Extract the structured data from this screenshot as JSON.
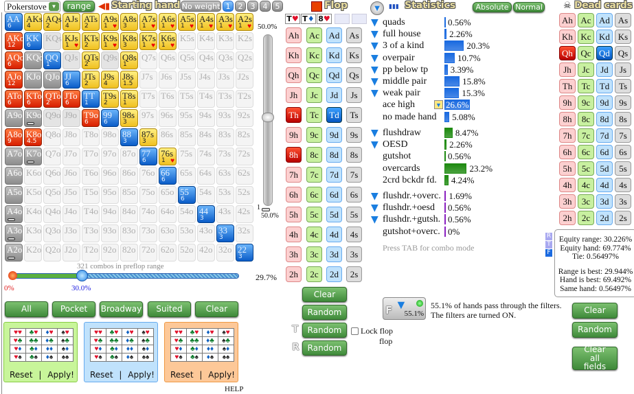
{
  "header": {
    "preset": "Pokerstove",
    "range_btn": "range",
    "title": "Starting hand",
    "no_weight": "No weight",
    "weight_tabs": [
      "1",
      "2",
      "3",
      "4",
      "5"
    ],
    "active_weight": "1"
  },
  "grid": [
    [
      [
        "AA",
        "p",
        "6"
      ],
      [
        "AKs",
        "s",
        "4"
      ],
      [
        "AQs",
        "s",
        "2"
      ],
      [
        "AJs",
        "s",
        "4"
      ],
      [
        "ATs",
        "s",
        "2"
      ],
      [
        "A9s",
        "s",
        "1",
        "h"
      ],
      [
        "A8s",
        "s",
        "3"
      ],
      [
        "A7s",
        "s",
        "1",
        "h"
      ],
      [
        "A6s",
        "s",
        "1",
        "h"
      ],
      [
        "A5s",
        "s",
        "1",
        "h"
      ],
      [
        "A4s",
        "s",
        "1",
        "h"
      ],
      [
        "A3s",
        "s",
        "1",
        "h"
      ],
      [
        "A2s",
        "s",
        "1",
        "h"
      ]
    ],
    [
      [
        "AKo",
        "o",
        "12"
      ],
      [
        "KK",
        "p",
        "6"
      ],
      [
        "KQs",
        "q"
      ],
      [
        "KJs",
        "s",
        "1",
        "h"
      ],
      [
        "KTs",
        "s",
        "2"
      ],
      [
        "K9s",
        "s",
        "1",
        "h"
      ],
      [
        "K8s",
        "s",
        "3"
      ],
      [
        "K7s",
        "s",
        "1",
        "h"
      ],
      [
        "K6s",
        "s",
        "1",
        "h"
      ],
      [
        "K5s",
        "n"
      ],
      [
        "K4s",
        "n"
      ],
      [
        "K3s",
        "n"
      ],
      [
        "K2s",
        "n"
      ]
    ],
    [
      [
        "AQo",
        "o",
        "6"
      ],
      [
        "KQo",
        "g"
      ],
      [
        "QQ",
        "p",
        "1"
      ],
      [
        "QJs",
        "q"
      ],
      [
        "QTs",
        "s",
        "2"
      ],
      [
        "Q9s",
        "q"
      ],
      [
        "Q8s",
        "s",
        "1"
      ],
      [
        "Q7s",
        "n"
      ],
      [
        "Q6s",
        "n"
      ],
      [
        "Q5s",
        "n"
      ],
      [
        "Q4s",
        "n"
      ],
      [
        "Q3s",
        "n"
      ],
      [
        "Q2s",
        "n"
      ]
    ],
    [
      [
        "AJo",
        "o",
        "12"
      ],
      [
        "KJo",
        "g"
      ],
      [
        "QJo",
        "g"
      ],
      [
        "JJ",
        "p",
        "6"
      ],
      [
        "JTs",
        "s",
        "2"
      ],
      [
        "J9s",
        "s",
        "4"
      ],
      [
        "J8s",
        "s",
        "1.5"
      ],
      [
        "J7s",
        "n"
      ],
      [
        "J6s",
        "n"
      ],
      [
        "J5s",
        "n"
      ],
      [
        "J4s",
        "n"
      ],
      [
        "J3s",
        "n"
      ],
      [
        "J2s",
        "n"
      ]
    ],
    [
      [
        "ATo",
        "o",
        "6"
      ],
      [
        "KTo",
        "o",
        "6"
      ],
      [
        "QTo",
        "o",
        "2"
      ],
      [
        "JTo",
        "o",
        "6"
      ],
      [
        "TT",
        "p",
        "1"
      ],
      [
        "T9s",
        "s",
        "2"
      ],
      [
        "T8s",
        "s",
        "1"
      ],
      [
        "T7s",
        "n"
      ],
      [
        "T6s",
        "n"
      ],
      [
        "T5s",
        "n"
      ],
      [
        "T4s",
        "n"
      ],
      [
        "T3s",
        "n"
      ],
      [
        "T2s",
        "n"
      ]
    ],
    [
      [
        "A9o",
        "g"
      ],
      [
        "K9o",
        "g",
        "",
        "b"
      ],
      [
        "Q9o",
        "q"
      ],
      [
        "J9o",
        "q"
      ],
      [
        "T9o",
        "o",
        "6"
      ],
      [
        "99",
        "p",
        "6"
      ],
      [
        "98s",
        "s",
        "3"
      ],
      [
        "97s",
        "n"
      ],
      [
        "96s",
        "n"
      ],
      [
        "95s",
        "n"
      ],
      [
        "94s",
        "n"
      ],
      [
        "93s",
        "n"
      ],
      [
        "92s",
        "n"
      ]
    ],
    [
      [
        "A8o",
        "o",
        "9"
      ],
      [
        "K8o",
        "o",
        "4.5"
      ],
      [
        "Q8o",
        "n"
      ],
      [
        "J8o",
        "n"
      ],
      [
        "T8o",
        "n"
      ],
      [
        "98o",
        "n"
      ],
      [
        "88",
        "p",
        "3"
      ],
      [
        "87s",
        "s",
        "3"
      ],
      [
        "86s",
        "n"
      ],
      [
        "85s",
        "n"
      ],
      [
        "84s",
        "n"
      ],
      [
        "83s",
        "n"
      ],
      [
        "82s",
        "n"
      ]
    ],
    [
      [
        "A7o",
        "g"
      ],
      [
        "K7o",
        "g",
        "",
        "b"
      ],
      [
        "Q7o",
        "n"
      ],
      [
        "J7o",
        "n"
      ],
      [
        "T7o",
        "n"
      ],
      [
        "97o",
        "n"
      ],
      [
        "87o",
        "n"
      ],
      [
        "77",
        "p",
        "6"
      ],
      [
        "76s",
        "s",
        "1",
        "h"
      ],
      [
        "75s",
        "n"
      ],
      [
        "74s",
        "n"
      ],
      [
        "73s",
        "n"
      ],
      [
        "72s",
        "n"
      ]
    ],
    [
      [
        "A6o",
        "g"
      ],
      [
        "K6o",
        "n"
      ],
      [
        "Q6o",
        "n"
      ],
      [
        "J6o",
        "n"
      ],
      [
        "T6o",
        "n"
      ],
      [
        "96o",
        "n"
      ],
      [
        "86o",
        "n"
      ],
      [
        "76o",
        "n"
      ],
      [
        "66",
        "p",
        "6"
      ],
      [
        "65s",
        "n"
      ],
      [
        "64s",
        "n"
      ],
      [
        "63s",
        "n"
      ],
      [
        "62s",
        "n"
      ]
    ],
    [
      [
        "A5o",
        "g"
      ],
      [
        "K5o",
        "n"
      ],
      [
        "Q5o",
        "n"
      ],
      [
        "J5o",
        "n"
      ],
      [
        "T5o",
        "n"
      ],
      [
        "95o",
        "n"
      ],
      [
        "85o",
        "n"
      ],
      [
        "75o",
        "n"
      ],
      [
        "65o",
        "n"
      ],
      [
        "55",
        "p",
        "6"
      ],
      [
        "54s",
        "n"
      ],
      [
        "53s",
        "n"
      ],
      [
        "52s",
        "n"
      ]
    ],
    [
      [
        "A4o",
        "g",
        "",
        "b"
      ],
      [
        "K4o",
        "n"
      ],
      [
        "Q4o",
        "n"
      ],
      [
        "J4o",
        "n"
      ],
      [
        "T4o",
        "n"
      ],
      [
        "94o",
        "n"
      ],
      [
        "84o",
        "n"
      ],
      [
        "74o",
        "n"
      ],
      [
        "64o",
        "n"
      ],
      [
        "54o",
        "n"
      ],
      [
        "44",
        "p",
        "3"
      ],
      [
        "43s",
        "n"
      ],
      [
        "42s",
        "n"
      ]
    ],
    [
      [
        "A3o",
        "g",
        "",
        "b"
      ],
      [
        "K3o",
        "n"
      ],
      [
        "Q3o",
        "n"
      ],
      [
        "J3o",
        "n"
      ],
      [
        "T3o",
        "n"
      ],
      [
        "93o",
        "n"
      ],
      [
        "83o",
        "n"
      ],
      [
        "73o",
        "n"
      ],
      [
        "63o",
        "n"
      ],
      [
        "53o",
        "n"
      ],
      [
        "43o",
        "n"
      ],
      [
        "33",
        "p",
        "3"
      ],
      [
        "32s",
        "n"
      ]
    ],
    [
      [
        "A2o",
        "g",
        "",
        "b"
      ],
      [
        "K2o",
        "n"
      ],
      [
        "Q2o",
        "n"
      ],
      [
        "J2o",
        "n"
      ],
      [
        "T2o",
        "n"
      ],
      [
        "92o",
        "n"
      ],
      [
        "82o",
        "n"
      ],
      [
        "72o",
        "n"
      ],
      [
        "62o",
        "n"
      ],
      [
        "52o",
        "n"
      ],
      [
        "42o",
        "n"
      ],
      [
        "32o",
        "n"
      ],
      [
        "22",
        "p",
        "3"
      ]
    ]
  ],
  "weight_slider": {
    "top_label": "50.0%",
    "bottom_index": "1",
    "bottom_label": "50.0%",
    "value_pct": 50
  },
  "range_slider": {
    "combos_text": "321 combos in preflop range",
    "min_label": "0%",
    "value_label": "30.0%",
    "value": 30.0,
    "right_label": "29.7%"
  },
  "quick_buttons": [
    "All",
    "Pocket",
    "Broadway",
    "Suited",
    "Clear"
  ],
  "suit_boxes": [
    {
      "color": "#c8f59a",
      "border": "#8c4"
    },
    {
      "color": "#c0e2fc",
      "border": "#6ae"
    },
    {
      "color": "#fdc898",
      "border": "#e94"
    }
  ],
  "suit_box_labels": {
    "reset": "Reset",
    "sep": "|",
    "apply": "Apply!"
  },
  "suits": {
    "h": {
      "glyph": "♥",
      "color": "#e0102a"
    },
    "c": {
      "glyph": "♣",
      "color": "#0a7a2a"
    },
    "d": {
      "glyph": "♦",
      "color": "#1060c0"
    },
    "s": {
      "glyph": "♠",
      "color": "#222"
    }
  },
  "help": "HELP",
  "flop": {
    "title": "Flop",
    "board": [
      {
        "rank": "T",
        "suit": "h"
      },
      {
        "rank": "T",
        "suit": "d"
      },
      {
        "rank": "8",
        "suit": "h"
      }
    ],
    "selected": {
      "Th": "selr",
      "Td": "selb",
      "8h": "selr"
    },
    "buttons": {
      "clear": "Clear",
      "random": "Random",
      "turn_random": "Random",
      "river_random": "Random",
      "turn_tag": "T",
      "river_tag": "R",
      "lock": "Lock flop"
    }
  },
  "ranks": [
    "A",
    "K",
    "Q",
    "J",
    "T",
    "9",
    "8",
    "7",
    "6",
    "5",
    "4",
    "3",
    "2"
  ],
  "suit_order": [
    "h",
    "c",
    "d",
    "s"
  ],
  "stats": {
    "title": "Statistics",
    "absolute": "Absolute",
    "normal": "Normal",
    "made": [
      {
        "label": "quads",
        "value": "0.56%",
        "pct": 0.56,
        "filter": true
      },
      {
        "label": "full house",
        "value": "2.26%",
        "pct": 2.26,
        "filter": true
      },
      {
        "label": "3 of a kind",
        "value": "20.3%",
        "pct": 20.3,
        "filter": true
      },
      {
        "label": "overpair",
        "value": "10.7%",
        "pct": 10.7,
        "filter": true
      },
      {
        "label": "pp below tp",
        "value": "3.39%",
        "pct": 3.39,
        "filter": true
      },
      {
        "label": "middle pair",
        "value": "15.8%",
        "pct": 15.8,
        "filter": true
      },
      {
        "label": "weak pair",
        "value": "15.3%",
        "pct": 15.3,
        "filter": true
      },
      {
        "label": "ace high",
        "value": "26.6%",
        "pct": 26.6,
        "filter": false,
        "highlight": true
      },
      {
        "label": "no made hand",
        "value": "5.08%",
        "pct": 5.08,
        "filter": false
      }
    ],
    "draws": [
      {
        "label": "flushdraw",
        "value": "8.47%",
        "pct": 8.47,
        "filter": true
      },
      {
        "label": "OESD",
        "value": "2.26%",
        "pct": 2.26,
        "filter": true
      },
      {
        "label": "gutshot",
        "value": "0.56%",
        "pct": 0.56,
        "filter": false
      },
      {
        "label": "overcards",
        "value": "23.2%",
        "pct": 23.2,
        "filter": false
      },
      {
        "label": "2crd bckdr fd.",
        "value": "4.24%",
        "pct": 4.24,
        "filter": false
      }
    ],
    "combos": [
      {
        "label": "flushdr.+overc.",
        "value": "1.69%",
        "pct": 1.69,
        "filter": true
      },
      {
        "label": "flushdr.+oesd",
        "value": "0.56%",
        "pct": 0.56,
        "filter": true
      },
      {
        "label": "flushdr.+gutsh.",
        "value": "0.56%",
        "pct": 0.56,
        "filter": true
      },
      {
        "label": "gutshot+overc.",
        "value": "0%",
        "pct": 0,
        "filter": false
      }
    ],
    "hint": "Press TAB for combo mode",
    "colors": {
      "made": "#1a6ae0",
      "draws": "#1e8a10",
      "combos": "#8a20c0"
    }
  },
  "filter": {
    "pct": "55.1%",
    "tag": "F",
    "line1": "55.1% of hands pass through the filters.",
    "line2": "The filters are turned ON.",
    "status_word": "flop"
  },
  "dead": {
    "title": "Dead cards",
    "selected": {
      "Qh": "selr",
      "Qd": "selb"
    },
    "clear": "Clear",
    "random": "Random",
    "clear_all": "Clear all fields"
  },
  "equity": {
    "tags": [
      "R",
      "T",
      "F"
    ],
    "lines": [
      "Equity range: 30.226%",
      "Equity hand: 69.774%",
      "Tie: 0.56497%"
    ],
    "lines2": [
      "Range is best: 29.944%",
      "Hand is best: 69.492%",
      "Same hand: 0.56497%"
    ]
  }
}
